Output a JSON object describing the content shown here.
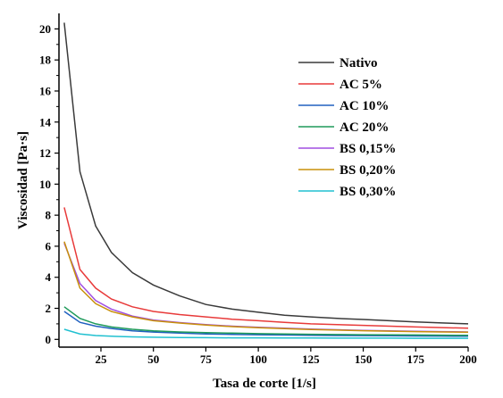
{
  "chart_data": {
    "type": "line",
    "title": "",
    "xlabel": "Tasa de corte [1/s]",
    "ylabel": "Viscosidad [Pa·s]",
    "xlim": [
      5,
      200
    ],
    "ylim": [
      -0.5,
      21
    ],
    "x_ticks": [
      25,
      50,
      75,
      100,
      125,
      150,
      175,
      200
    ],
    "y_ticks": [
      0,
      2,
      4,
      6,
      8,
      10,
      12,
      14,
      16,
      18,
      20
    ],
    "grid": false,
    "legend_position": "top-right",
    "x": [
      7.5,
      15,
      22.5,
      30,
      40,
      50,
      62.5,
      75,
      87.5,
      100,
      112.5,
      125,
      137.5,
      150,
      162.5,
      175,
      187.5,
      200
    ],
    "series": [
      {
        "name": "Nativo",
        "color": "#3a3a3a",
        "values": [
          20.4,
          10.8,
          7.3,
          5.6,
          4.3,
          3.5,
          2.8,
          2.25,
          1.95,
          1.75,
          1.55,
          1.45,
          1.35,
          1.28,
          1.2,
          1.12,
          1.06,
          1.0
        ]
      },
      {
        "name": "AC 5%",
        "color": "#e83a3a",
        "values": [
          8.5,
          4.5,
          3.3,
          2.6,
          2.1,
          1.8,
          1.6,
          1.45,
          1.3,
          1.2,
          1.1,
          1.0,
          0.95,
          0.9,
          0.85,
          0.8,
          0.76,
          0.72
        ]
      },
      {
        "name": "AC 10%",
        "color": "#2060c0",
        "values": [
          1.8,
          1.1,
          0.85,
          0.7,
          0.55,
          0.47,
          0.4,
          0.35,
          0.32,
          0.3,
          0.28,
          0.26,
          0.25,
          0.24,
          0.23,
          0.22,
          0.21,
          0.2
        ]
      },
      {
        "name": "AC 20%",
        "color": "#1e9a5a",
        "values": [
          2.1,
          1.35,
          1.0,
          0.8,
          0.65,
          0.55,
          0.48,
          0.43,
          0.4,
          0.37,
          0.35,
          0.33,
          0.31,
          0.3,
          0.29,
          0.28,
          0.27,
          0.26
        ]
      },
      {
        "name": "BS 0,15%",
        "color": "#a04ee0",
        "values": [
          6.2,
          3.6,
          2.5,
          1.95,
          1.5,
          1.25,
          1.08,
          0.95,
          0.85,
          0.78,
          0.72,
          0.66,
          0.62,
          0.58,
          0.55,
          0.52,
          0.5,
          0.48
        ]
      },
      {
        "name": "BS 0,20%",
        "color": "#c8900a",
        "values": [
          6.3,
          3.3,
          2.3,
          1.8,
          1.45,
          1.2,
          1.05,
          0.92,
          0.82,
          0.75,
          0.69,
          0.64,
          0.6,
          0.56,
          0.53,
          0.5,
          0.48,
          0.46
        ]
      },
      {
        "name": "BS 0,30%",
        "color": "#20c0d0",
        "values": [
          0.65,
          0.35,
          0.25,
          0.2,
          0.16,
          0.14,
          0.12,
          0.11,
          0.1,
          0.1,
          0.09,
          0.09,
          0.08,
          0.08,
          0.08,
          0.07,
          0.07,
          0.07
        ]
      }
    ]
  }
}
